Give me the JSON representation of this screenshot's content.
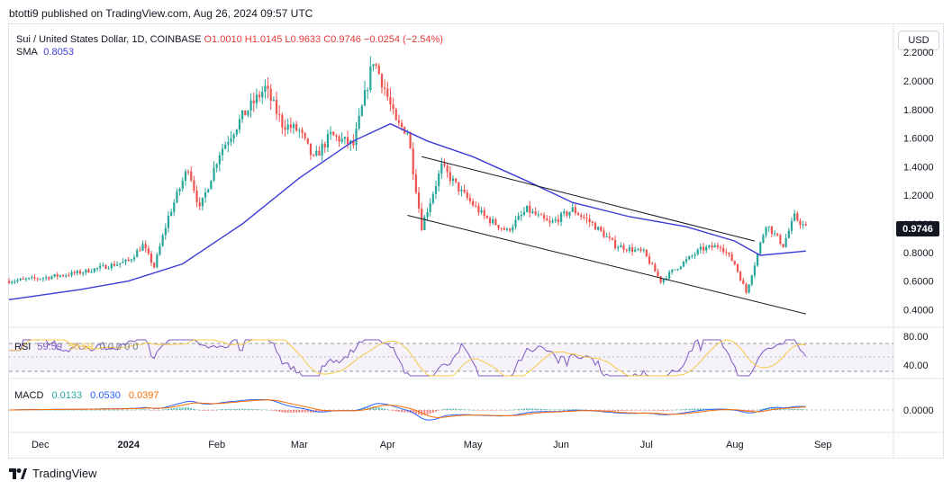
{
  "header": {
    "publish_text": "btotti9 published on TradingView.com, Aug 26, 2024 09:57 UTC"
  },
  "legend": {
    "symbol": "Sui / United States Dollar, 1D, COINBASE",
    "open": "O1.0010",
    "high": "H1.0145",
    "low": "L0.9633",
    "close": "C0.9746",
    "change": "−0.0254 (−2.54%)",
    "sma_label": "SMA",
    "sma_value": "0.8053"
  },
  "currency_button": "USD",
  "rsi_legend": {
    "label": "RSI",
    "value1": "59.59",
    "value2": "50.59",
    "extra": "0 0 0 0 0"
  },
  "macd_legend": {
    "label": "MACD",
    "hist": "0.0133",
    "macd": "0.0530",
    "signal": "0.0397"
  },
  "footer": {
    "brand": "TradingView"
  },
  "price_labels": {
    "last": "0.9746"
  },
  "colors": {
    "up": "#26a69a",
    "down": "#ef5350",
    "sma": "#3b3bd6",
    "rsi": "#7e57c2",
    "rsi_ma": "#f7c948",
    "macd": "#2962ff",
    "signal": "#ff6d00",
    "channel": "#131722"
  },
  "chart_data": {
    "type": "candlestick",
    "price_axis": {
      "ylim": [
        0.3,
        2.2
      ],
      "ticks": [
        "2.2000",
        "2.0000",
        "1.8000",
        "1.6000",
        "1.4000",
        "1.2000",
        "1.0000",
        "0.8000",
        "0.6000",
        "0.4000"
      ]
    },
    "x_ticks": [
      "Dec",
      "2024",
      "Feb",
      "Mar",
      "Apr",
      "May",
      "Jun",
      "Jul",
      "Aug",
      "Sep"
    ],
    "price_path": [
      [
        "2023-11-20",
        0.6
      ],
      [
        "2023-12-01",
        0.62
      ],
      [
        "2023-12-15",
        0.66
      ],
      [
        "2024-01-01",
        0.74
      ],
      [
        "2024-01-06",
        0.85
      ],
      [
        "2024-01-10",
        0.7
      ],
      [
        "2024-01-15",
        1.05
      ],
      [
        "2024-01-22",
        1.4
      ],
      [
        "2024-01-26",
        1.1
      ],
      [
        "2024-02-02",
        1.5
      ],
      [
        "2024-02-10",
        1.75
      ],
      [
        "2024-02-18",
        1.95
      ],
      [
        "2024-02-24",
        1.7
      ],
      [
        "2024-03-01",
        1.65
      ],
      [
        "2024-03-06",
        1.45
      ],
      [
        "2024-03-12",
        1.62
      ],
      [
        "2024-03-20",
        1.55
      ],
      [
        "2024-03-27",
        2.15
      ],
      [
        "2024-03-31",
        1.95
      ],
      [
        "2024-04-04",
        1.7
      ],
      [
        "2024-04-08",
        1.65
      ],
      [
        "2024-04-13",
        0.98
      ],
      [
        "2024-04-20",
        1.4
      ],
      [
        "2024-04-27",
        1.22
      ],
      [
        "2024-05-05",
        1.05
      ],
      [
        "2024-05-13",
        0.95
      ],
      [
        "2024-05-20",
        1.1
      ],
      [
        "2024-05-28",
        1.0
      ],
      [
        "2024-06-05",
        1.1
      ],
      [
        "2024-06-12",
        1.0
      ],
      [
        "2024-06-20",
        0.85
      ],
      [
        "2024-06-30",
        0.8
      ],
      [
        "2024-07-06",
        0.6
      ],
      [
        "2024-07-12",
        0.7
      ],
      [
        "2024-07-20",
        0.82
      ],
      [
        "2024-07-27",
        0.85
      ],
      [
        "2024-08-01",
        0.72
      ],
      [
        "2024-08-05",
        0.52
      ],
      [
        "2024-08-08",
        0.72
      ],
      [
        "2024-08-12",
        1.0
      ],
      [
        "2024-08-18",
        0.85
      ],
      [
        "2024-08-22",
        1.05
      ],
      [
        "2024-08-26",
        0.97
      ]
    ],
    "sma_series": [
      [
        "2023-11-20",
        0.47
      ],
      [
        "2023-12-15",
        0.54
      ],
      [
        "2024-01-01",
        0.6
      ],
      [
        "2024-01-20",
        0.72
      ],
      [
        "2024-02-10",
        1.0
      ],
      [
        "2024-03-01",
        1.32
      ],
      [
        "2024-03-20",
        1.58
      ],
      [
        "2024-04-02",
        1.7
      ],
      [
        "2024-04-15",
        1.58
      ],
      [
        "2024-05-01",
        1.47
      ],
      [
        "2024-05-20",
        1.3
      ],
      [
        "2024-06-05",
        1.15
      ],
      [
        "2024-06-25",
        1.05
      ],
      [
        "2024-07-15",
        0.98
      ],
      [
        "2024-08-01",
        0.88
      ],
      [
        "2024-08-10",
        0.78
      ],
      [
        "2024-08-26",
        0.81
      ]
    ],
    "channel_lines": [
      {
        "start": [
          "2024-04-13",
          1.47
        ],
        "end": [
          "2024-08-08",
          0.88
        ]
      },
      {
        "start": [
          "2024-04-08",
          1.06
        ],
        "end": [
          "2024-08-26",
          0.37
        ]
      }
    ],
    "rsi": {
      "ylim": [
        30,
        80
      ],
      "ticks": [
        "80.00",
        "40.00"
      ],
      "upper_band": 70,
      "lower_band": 30
    },
    "macd": {
      "ticks": [
        "0.0000"
      ]
    }
  }
}
